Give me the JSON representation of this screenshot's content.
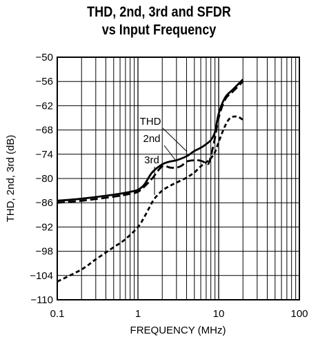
{
  "chart_data": {
    "type": "line",
    "title": [
      "THD, 2nd, 3rd and SFDR",
      "vs Input Frequency"
    ],
    "xlabel": "FREQUENCY (MHz)",
    "ylabel": "THD, 2nd, 3rd (dB)",
    "xscale": "log",
    "xlim": [
      0.1,
      100
    ],
    "ylim": [
      -110,
      -50
    ],
    "xticks": [
      0.1,
      1,
      10,
      100
    ],
    "xtick_labels": [
      "0.1",
      "1",
      "10",
      "100"
    ],
    "yticks": [
      -50,
      -56,
      -62,
      -68,
      -74,
      -80,
      -86,
      -92,
      -98,
      -104,
      -110
    ],
    "ytick_labels": [
      "−50",
      "−56",
      "−62",
      "−68",
      "−74",
      "−80",
      "−86",
      "−92",
      "−98",
      "−104",
      "−110"
    ],
    "grid": true,
    "series": [
      {
        "name": "THD",
        "style": "solid",
        "x": [
          0.1,
          0.2,
          0.5,
          0.8,
          1.0,
          1.2,
          1.5,
          2.0,
          2.5,
          3.0,
          4.0,
          5.0,
          6.0,
          7.0,
          8.0,
          9.0,
          10.0,
          12.0,
          15.0,
          20.0
        ],
        "y": [
          -85.5,
          -85.0,
          -84.0,
          -83.3,
          -82.8,
          -81.5,
          -78.5,
          -76.5,
          -75.8,
          -75.5,
          -74.5,
          -73.2,
          -72.4,
          -71.5,
          -70.5,
          -68.5,
          -64.0,
          -60.0,
          -58.0,
          -55.5
        ]
      },
      {
        "name": "2nd",
        "style": "long-dash",
        "x": [
          0.1,
          0.2,
          0.5,
          0.8,
          1.0,
          1.2,
          1.5,
          2.0,
          2.5,
          3.0,
          3.5,
          4.0,
          5.0,
          6.0,
          7.0,
          7.5,
          8.0,
          9.0,
          10.0,
          12.0,
          15.0,
          20.0
        ],
        "y": [
          -86.0,
          -85.5,
          -84.5,
          -83.8,
          -83.3,
          -82.0,
          -80.0,
          -77.0,
          -77.3,
          -77.3,
          -76.8,
          -75.8,
          -75.5,
          -75.6,
          -76.2,
          -76.3,
          -74.5,
          -70.0,
          -65.0,
          -60.5,
          -58.5,
          -56.0
        ]
      },
      {
        "name": "3rd",
        "style": "short-dash",
        "x": [
          0.1,
          0.2,
          0.3,
          0.5,
          0.7,
          1.0,
          1.2,
          1.4,
          1.6,
          2.0,
          2.5,
          3.0,
          4.0,
          5.0,
          6.0,
          7.0,
          8.0,
          9.0,
          10.0,
          12.0,
          14.0,
          17.0,
          20.0
        ],
        "y": [
          -105.5,
          -102.5,
          -100.0,
          -97.0,
          -95.0,
          -92.0,
          -89.5,
          -87.0,
          -85.0,
          -83.0,
          -81.8,
          -81.0,
          -79.8,
          -78.5,
          -77.0,
          -76.0,
          -75.0,
          -73.5,
          -71.0,
          -67.0,
          -65.0,
          -64.7,
          -65.5
        ]
      }
    ],
    "annotations": [
      "THD",
      "2nd",
      "3rd"
    ]
  }
}
